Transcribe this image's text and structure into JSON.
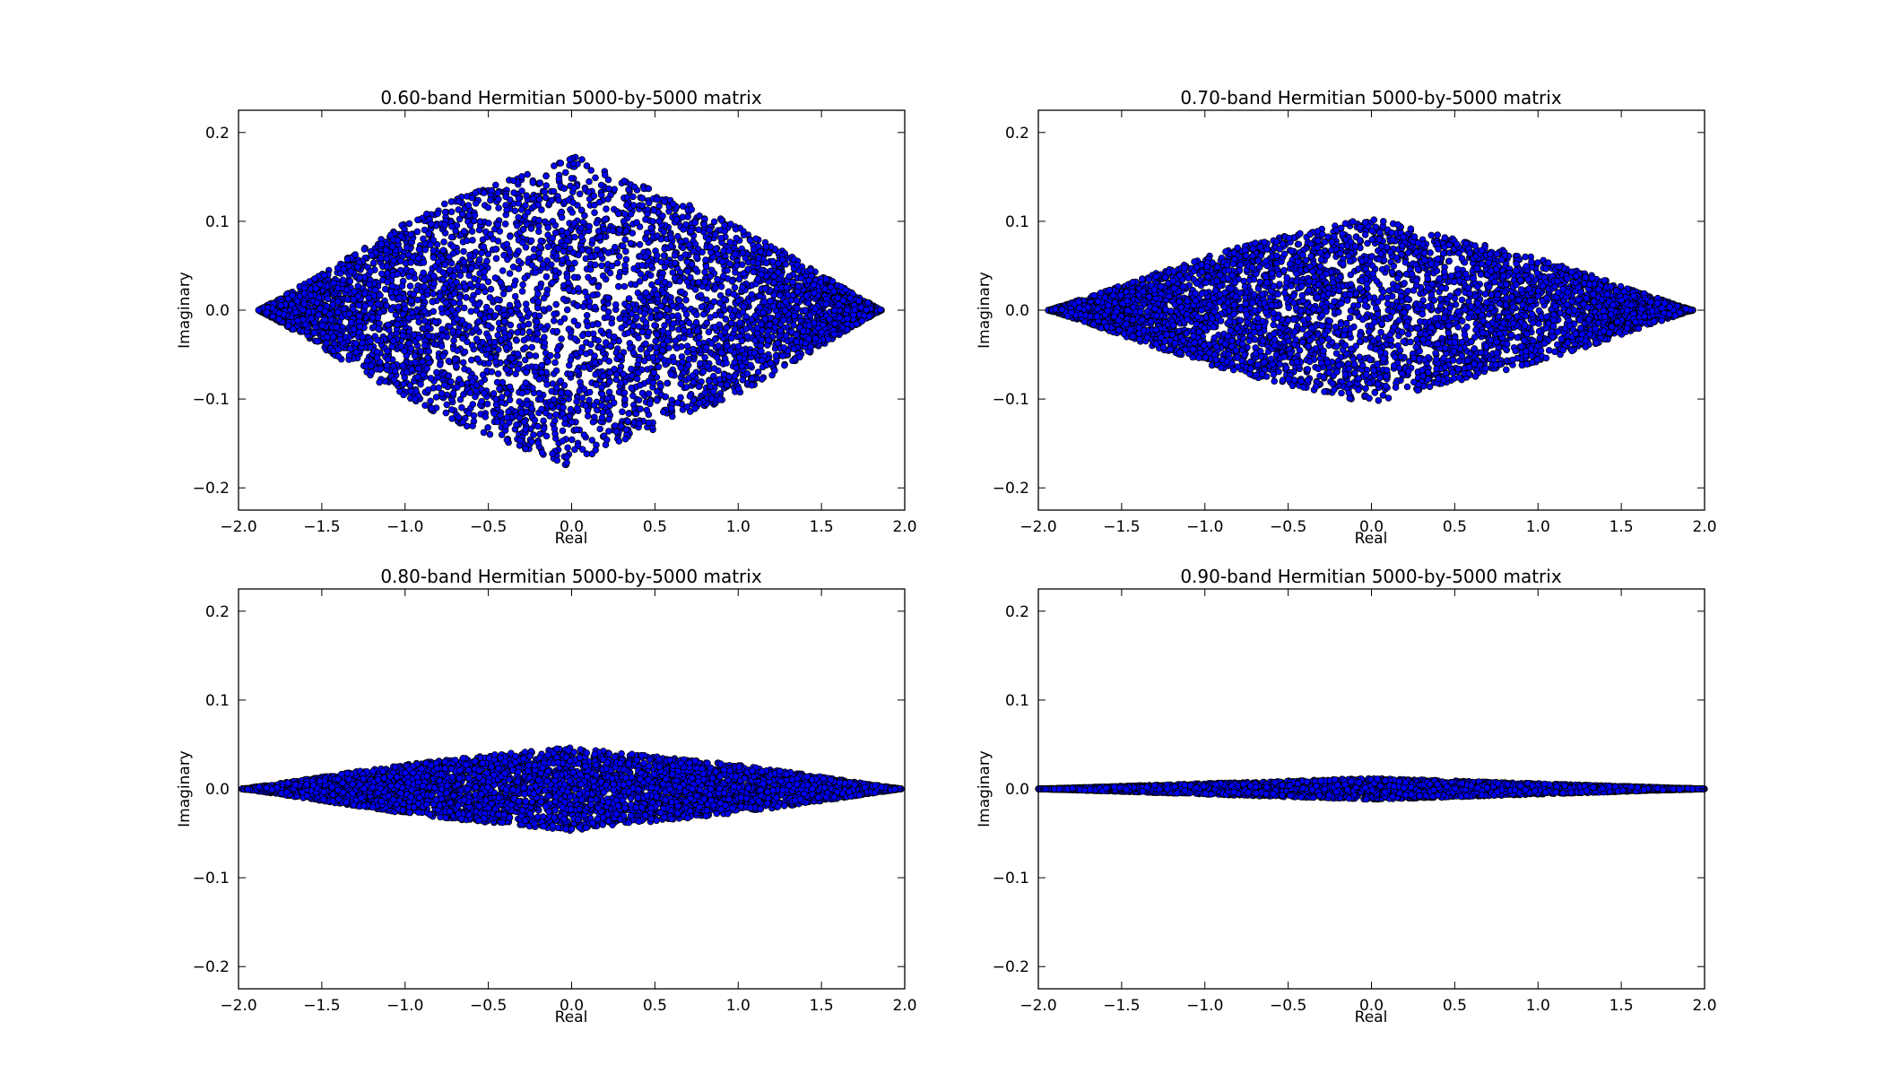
{
  "chart_data": [
    {
      "type": "scatter",
      "title": "0.60-band Hermitian 5000-by-5000 matrix",
      "xlabel": "Real",
      "ylabel": "Imaginary",
      "xlim": [
        -2.0,
        2.0
      ],
      "ylim": [
        -0.225,
        0.225
      ],
      "xticks": [
        "−2.0",
        "−1.5",
        "−1.0",
        "−0.5",
        "0.0",
        "0.5",
        "1.0",
        "1.5",
        "2.0"
      ],
      "yticks": [
        "−0.2",
        "−0.1",
        "0.0",
        "0.1",
        "0.2"
      ],
      "x_extent": [
        -1.88,
        1.86
      ],
      "y_half_height_max": 0.21,
      "n_points": 5000,
      "grid": false,
      "marker_fill": "#0000ff",
      "marker_edge": "#000000"
    },
    {
      "type": "scatter",
      "title": "0.70-band Hermitian 5000-by-5000 matrix",
      "xlabel": "Real",
      "ylabel": "Imaginary",
      "xlim": [
        -2.0,
        2.0
      ],
      "ylim": [
        -0.225,
        0.225
      ],
      "xticks": [
        "−2.0",
        "−1.5",
        "−1.0",
        "−0.5",
        "0.0",
        "0.5",
        "1.0",
        "1.5",
        "2.0"
      ],
      "yticks": [
        "−0.2",
        "−0.1",
        "0.0",
        "0.1",
        "0.2"
      ],
      "x_extent": [
        -1.94,
        1.93
      ],
      "y_half_height_max": 0.125,
      "n_points": 5000,
      "grid": false,
      "marker_fill": "#0000ff",
      "marker_edge": "#000000"
    },
    {
      "type": "scatter",
      "title": "0.80-band Hermitian 5000-by-5000 matrix",
      "xlabel": "Real",
      "ylabel": "Imaginary",
      "xlim": [
        -2.0,
        2.0
      ],
      "ylim": [
        -0.225,
        0.225
      ],
      "xticks": [
        "−2.0",
        "−1.5",
        "−1.0",
        "−0.5",
        "0.0",
        "0.5",
        "1.0",
        "1.5",
        "2.0"
      ],
      "yticks": [
        "−0.2",
        "−0.1",
        "0.0",
        "0.1",
        "0.2"
      ],
      "x_extent": [
        -1.98,
        1.98
      ],
      "y_half_height_max": 0.056,
      "n_points": 5000,
      "grid": false,
      "marker_fill": "#0000ff",
      "marker_edge": "#000000"
    },
    {
      "type": "scatter",
      "title": "0.90-band Hermitian 5000-by-5000 matrix",
      "xlabel": "Real",
      "ylabel": "Imaginary",
      "xlim": [
        -2.0,
        2.0
      ],
      "ylim": [
        -0.225,
        0.225
      ],
      "xticks": [
        "−2.0",
        "−1.5",
        "−1.0",
        "−0.5",
        "0.0",
        "0.5",
        "1.0",
        "1.5",
        "2.0"
      ],
      "yticks": [
        "−0.2",
        "−0.1",
        "0.0",
        "0.1",
        "0.2"
      ],
      "x_extent": [
        -2.0,
        2.0
      ],
      "y_half_height_max": 0.012,
      "n_points": 5000,
      "grid": false,
      "marker_fill": "#0000ff",
      "marker_edge": "#000000"
    }
  ]
}
